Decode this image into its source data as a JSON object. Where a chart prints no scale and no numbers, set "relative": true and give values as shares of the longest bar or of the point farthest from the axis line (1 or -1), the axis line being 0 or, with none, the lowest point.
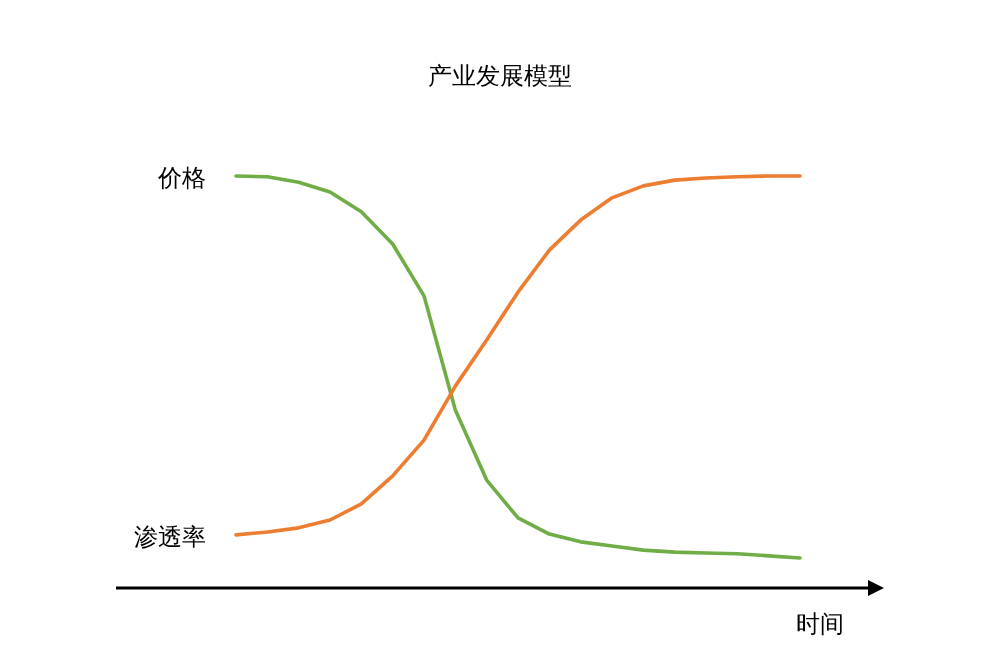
{
  "chart_data": {
    "type": "line",
    "title": "产业发展模型",
    "xlabel": "时间",
    "relative": true,
    "legend": false,
    "marker": "none",
    "line_style": "solid",
    "categories": [
      null,
      null,
      null,
      null,
      null,
      null,
      null,
      null,
      null,
      null,
      null,
      null,
      null,
      null,
      null,
      null,
      null,
      null,
      null
    ],
    "series": [
      {
        "name": "价格",
        "color": "#70ad47",
        "values": [
          1.0,
          0.998,
          0.985,
          0.961,
          0.913,
          0.835,
          0.709,
          0.432,
          0.262,
          0.17,
          0.131,
          0.112,
          0.102,
          0.092,
          0.087,
          0.085,
          0.083,
          0.078,
          0.073
        ]
      },
      {
        "name": "渗透率",
        "color": "#ed7d31",
        "values": [
          0.129,
          0.136,
          0.146,
          0.165,
          0.204,
          0.272,
          0.359,
          0.49,
          0.602,
          0.718,
          0.82,
          0.893,
          0.947,
          0.976,
          0.99,
          0.995,
          0.998,
          1.0,
          1.0
        ]
      }
    ]
  }
}
